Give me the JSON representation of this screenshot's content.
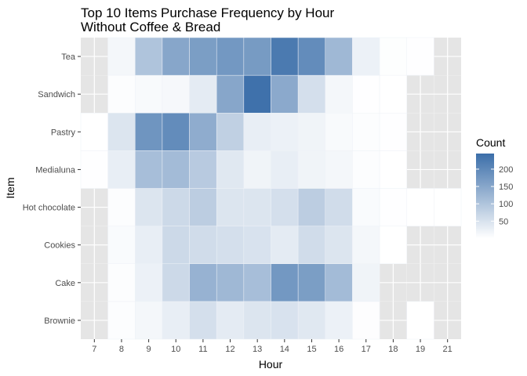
{
  "chart_data": {
    "type": "heatmap",
    "title": [
      "Top 10 Items Purchase Frequency by Hour",
      "Without Coffee & Bread"
    ],
    "xlabel": "Hour",
    "ylabel": "Item",
    "x": [
      7,
      8,
      9,
      10,
      11,
      12,
      13,
      14,
      15,
      16,
      17,
      18,
      19,
      21
    ],
    "y": [
      "Brownie",
      "Cake",
      "Cookies",
      "Hot chocolate",
      "Medialuna",
      "Pastry",
      "Sandwich",
      "Tea"
    ],
    "cells": {
      "Tea": {
        "8": 15,
        "9": 100,
        "10": 150,
        "11": 165,
        "12": 175,
        "13": 170,
        "14": 225,
        "15": 195,
        "16": 120,
        "17": 25,
        "18": 3,
        "19": 2
      },
      "Sandwich": {
        "8": 5,
        "9": 10,
        "10": 12,
        "11": 35,
        "12": 150,
        "13": 240,
        "14": 145,
        "15": 55,
        "16": 15,
        "17": 2,
        "18": 1
      },
      "Pastry": {
        "7": 1,
        "8": 45,
        "9": 180,
        "10": 195,
        "11": 140,
        "12": 80,
        "13": 30,
        "14": 25,
        "15": 20,
        "16": 10,
        "17": 5,
        "18": 2
      },
      "Medialuna": {
        "7": 2,
        "8": 30,
        "9": 110,
        "10": 115,
        "11": 90,
        "12": 40,
        "13": 20,
        "14": 30,
        "15": 20,
        "16": 15,
        "17": 5,
        "18": 1
      },
      "Hot chocolate": {
        "8": 5,
        "9": 45,
        "10": 65,
        "11": 85,
        "12": 45,
        "13": 45,
        "14": 55,
        "15": 85,
        "16": 60,
        "17": 8,
        "18": 2,
        "19": 1,
        "21": 1
      },
      "Cookies": {
        "8": 8,
        "9": 30,
        "10": 65,
        "11": 60,
        "12": 55,
        "13": 50,
        "14": 35,
        "15": 60,
        "16": 45,
        "17": 15,
        "18": 1
      },
      "Cake": {
        "8": 5,
        "9": 25,
        "10": 65,
        "11": 130,
        "12": 120,
        "13": 110,
        "14": 175,
        "15": 165,
        "16": 115,
        "17": 20
      },
      "Brownie": {
        "8": 5,
        "9": 15,
        "10": 30,
        "11": 55,
        "12": 35,
        "13": 45,
        "14": 50,
        "15": 40,
        "16": 25,
        "17": 4,
        "19": 1
      }
    },
    "legend": {
      "title": "Count",
      "ticks": [
        50,
        100,
        150,
        200
      ],
      "range": [
        1,
        245
      ]
    },
    "colors": {
      "low": "#ffffff",
      "high": "#3b6ea9",
      "panel": "#e5e5e5",
      "grid": "#ffffff"
    },
    "grid": true,
    "legend_position": "right"
  }
}
